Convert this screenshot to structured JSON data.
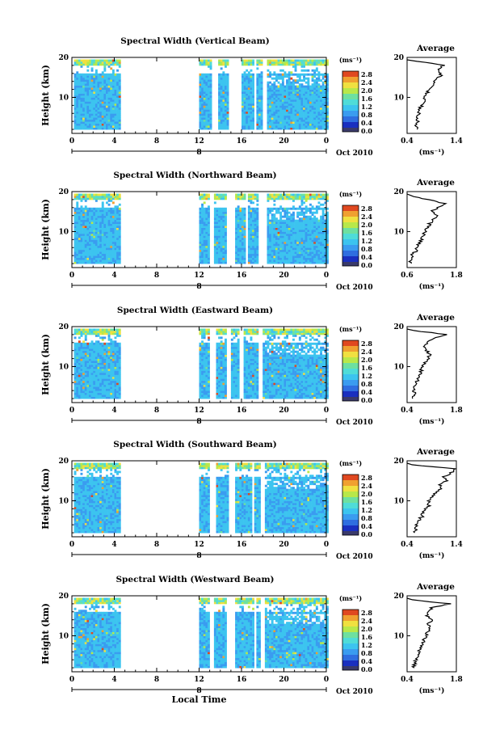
{
  "chart_data": [
    {
      "type": "heatmap",
      "title": "Spectral Width (Vertical Beam)",
      "ylabel": "Height (km)",
      "xlabel": "",
      "x_ticks": [
        "0",
        "4",
        "8",
        "12",
        "16",
        "20",
        "0"
      ],
      "y_ticks": [
        "20",
        "10"
      ],
      "xlim": [
        0,
        24
      ],
      "ylim": [
        1,
        20
      ],
      "date_marker": "8",
      "date_label": "Oct 2010",
      "data_gaps_hours": [
        [
          4.7,
          12.0
        ],
        [
          13.1,
          13.7
        ],
        [
          14.8,
          16.0
        ],
        [
          17.2,
          17.4
        ],
        [
          18.0,
          18.4
        ]
      ],
      "colorbar": {
        "unit": "(ms⁻¹)",
        "ticks": [
          "2.8",
          "2.4",
          "2.0",
          "1.6",
          "1.2",
          "0.8",
          "0.4",
          "0.0"
        ]
      },
      "average": {
        "title": "Average",
        "xlabel": "(ms⁻¹)",
        "xlim": [
          0.4,
          1.4
        ],
        "x_ticks": [
          "0.4",
          "1.4"
        ],
        "y_ticks": [
          "20",
          "10"
        ],
        "profile": {
          "height_km": [
            2,
            3,
            4,
            5,
            6,
            7,
            8,
            9,
            10,
            11,
            12,
            13,
            14,
            15,
            16,
            17,
            18,
            19
          ],
          "width": [
            0.6,
            0.58,
            0.62,
            0.58,
            0.65,
            0.63,
            0.7,
            0.75,
            0.72,
            0.8,
            0.86,
            0.95,
            0.92,
            1.05,
            1.1,
            1.0,
            1.15,
            0.6
          ]
        }
      }
    },
    {
      "type": "heatmap",
      "title": "Spectral Width (Northward Beam)",
      "ylabel": "Height (km)",
      "xlabel": "",
      "x_ticks": [
        "0",
        "4",
        "8",
        "12",
        "16",
        "20",
        "0"
      ],
      "y_ticks": [
        "20",
        "10"
      ],
      "xlim": [
        0,
        24
      ],
      "ylim": [
        1,
        20
      ],
      "date_marker": "8",
      "date_label": "Oct 2010",
      "data_gaps_hours": [
        [
          4.7,
          12.0
        ],
        [
          12.9,
          13.4
        ],
        [
          14.5,
          15.3
        ],
        [
          16.4,
          16.6
        ],
        [
          17.6,
          18.3
        ]
      ],
      "colorbar": {
        "unit": "(ms⁻¹)",
        "ticks": [
          "2.8",
          "2.4",
          "2.0",
          "1.6",
          "1.2",
          "0.8",
          "0.4",
          "0.0"
        ]
      },
      "average": {
        "title": "Average",
        "xlabel": "(ms⁻¹)",
        "xlim": [
          0.6,
          1.8
        ],
        "x_ticks": [
          "0.6",
          "1.8"
        ],
        "y_ticks": [
          "20",
          "10"
        ],
        "profile": {
          "height_km": [
            2,
            3,
            4,
            5,
            6,
            7,
            8,
            9,
            10,
            11,
            12,
            13,
            14,
            15,
            16,
            17,
            18,
            19
          ],
          "width": [
            0.7,
            0.68,
            0.72,
            0.8,
            0.85,
            0.88,
            0.95,
            0.98,
            1.05,
            1.1,
            1.15,
            1.25,
            1.3,
            1.2,
            1.35,
            1.5,
            1.1,
            0.7
          ]
        }
      }
    },
    {
      "type": "heatmap",
      "title": "Spectral Width (Eastward Beam)",
      "ylabel": "Height (km)",
      "xlabel": "",
      "x_ticks": [
        "0",
        "4",
        "8",
        "12",
        "16",
        "20",
        "0"
      ],
      "y_ticks": [
        "20",
        "10"
      ],
      "xlim": [
        0,
        24
      ],
      "ylim": [
        1,
        20
      ],
      "date_marker": "8",
      "date_label": "Oct 2010",
      "data_gaps_hours": [
        [
          4.7,
          12.0
        ],
        [
          13.0,
          13.5
        ],
        [
          14.6,
          15.0
        ],
        [
          15.7,
          16.1
        ],
        [
          17.5,
          18.0
        ]
      ],
      "colorbar": {
        "unit": "(ms⁻¹)",
        "ticks": [
          "2.8",
          "2.4",
          "2.0",
          "1.6",
          "1.2",
          "0.8",
          "0.4",
          "0.0"
        ]
      },
      "average": {
        "title": "Average",
        "xlabel": "(ms⁻¹)",
        "xlim": [
          0.4,
          1.8
        ],
        "x_ticks": [
          "0.4",
          "1.8"
        ],
        "y_ticks": [
          "20",
          "10"
        ],
        "profile": {
          "height_km": [
            2,
            3,
            4,
            5,
            6,
            7,
            8,
            9,
            10,
            11,
            12,
            13,
            14,
            15,
            16,
            17,
            18,
            19
          ],
          "width": [
            0.55,
            0.6,
            0.58,
            0.62,
            0.68,
            0.7,
            0.75,
            0.8,
            0.85,
            0.9,
            1.0,
            1.05,
            0.95,
            0.9,
            1.0,
            1.1,
            1.5,
            0.6
          ]
        }
      }
    },
    {
      "type": "heatmap",
      "title": "Spectral Width (Southward Beam)",
      "ylabel": "Height (km)",
      "xlabel": "",
      "x_ticks": [
        "0",
        "4",
        "8",
        "12",
        "16",
        "20",
        "0"
      ],
      "y_ticks": [
        "20",
        "10"
      ],
      "xlim": [
        0,
        24
      ],
      "ylim": [
        1,
        20
      ],
      "date_marker": "8",
      "date_label": "Oct 2010",
      "data_gaps_hours": [
        [
          4.7,
          12.0
        ],
        [
          13.0,
          13.5
        ],
        [
          14.7,
          15.3
        ],
        [
          17.0,
          17.2
        ],
        [
          17.7,
          18.1
        ]
      ],
      "colorbar": {
        "unit": "(ms⁻¹)",
        "ticks": [
          "2.8",
          "2.4",
          "2.0",
          "1.6",
          "1.2",
          "0.8",
          "0.4",
          "0.0"
        ]
      },
      "average": {
        "title": "Average",
        "xlabel": "(ms⁻¹)",
        "xlim": [
          0.4,
          1.4
        ],
        "x_ticks": [
          "0.4",
          "1.4"
        ],
        "y_ticks": [
          "20",
          "10"
        ],
        "profile": {
          "height_km": [
            2,
            3,
            4,
            5,
            6,
            7,
            8,
            9,
            10,
            11,
            12,
            13,
            14,
            15,
            16,
            17,
            18,
            19
          ],
          "width": [
            0.55,
            0.58,
            0.6,
            0.62,
            0.7,
            0.72,
            0.78,
            0.85,
            0.82,
            0.9,
            1.0,
            1.1,
            1.05,
            1.2,
            1.15,
            1.3,
            1.35,
            0.5
          ]
        }
      }
    },
    {
      "type": "heatmap",
      "title": "Spectral Width (Westward Beam)",
      "ylabel": "Height (km)",
      "xlabel": "Local Time",
      "x_ticks": [
        "0",
        "4",
        "8",
        "12",
        "16",
        "20",
        "0"
      ],
      "y_ticks": [
        "20",
        "10"
      ],
      "xlim": [
        0,
        24
      ],
      "ylim": [
        1,
        20
      ],
      "date_marker": "8",
      "date_label": "Oct 2010",
      "data_gaps_hours": [
        [
          4.7,
          12.0
        ],
        [
          12.9,
          13.4
        ],
        [
          14.6,
          15.4
        ],
        [
          17.1,
          17.4
        ],
        [
          17.8,
          18.2
        ]
      ],
      "colorbar": {
        "unit": "(ms⁻¹)",
        "ticks": [
          "2.8",
          "2.4",
          "2.0",
          "1.6",
          "1.2",
          "0.8",
          "0.4",
          "0.0"
        ]
      },
      "average": {
        "title": "Average",
        "xlabel": "(ms⁻¹)",
        "xlim": [
          0.4,
          1.8
        ],
        "x_ticks": [
          "0.4",
          "1.8"
        ],
        "y_ticks": [
          "20",
          "10"
        ],
        "profile": {
          "height_km": [
            2,
            3,
            4,
            5,
            6,
            7,
            8,
            9,
            10,
            11,
            12,
            13,
            14,
            15,
            16,
            17,
            18,
            19
          ],
          "width": [
            0.6,
            0.62,
            0.65,
            0.7,
            0.75,
            0.8,
            0.82,
            0.88,
            0.95,
            1.0,
            1.05,
            1.0,
            1.1,
            0.95,
            1.05,
            1.1,
            1.6,
            0.55
          ]
        }
      }
    }
  ],
  "colors": {
    "colormap": [
      "#1a2fbf",
      "#2f6ee0",
      "#3a9cf0",
      "#3cc4ef",
      "#4fdcd8",
      "#6ee0a0",
      "#b8e84a",
      "#f0e040",
      "#f0a030",
      "#e04820"
    ],
    "bottom_box": "#3a3a6a"
  }
}
